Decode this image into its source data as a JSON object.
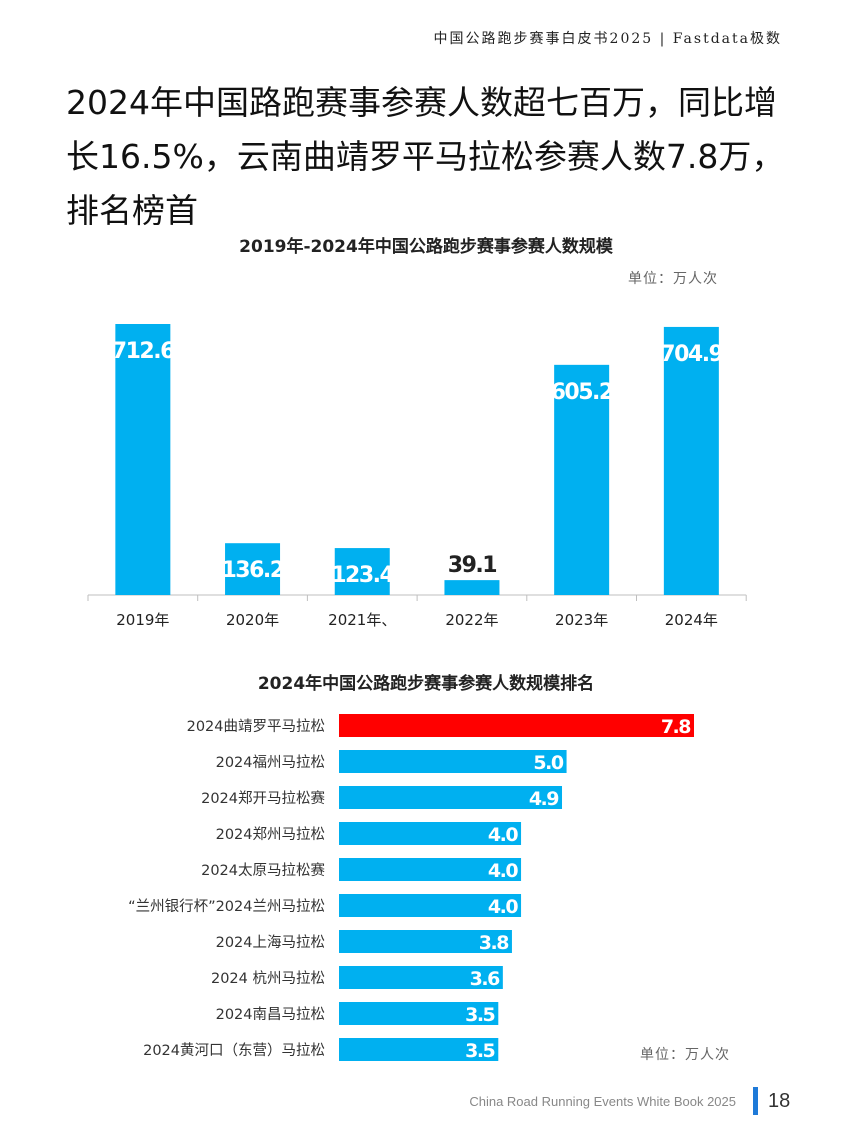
{
  "header": {
    "text": "中国公路跑步赛事白皮书2025 | Fastdata极数"
  },
  "headline": "2024年中国路跑赛事参赛人数超七百万，同比增长16.5%，云南曲靖罗平马拉松参赛人数7.8万，排名榜首",
  "chart_data": [
    {
      "type": "bar",
      "title": "2019年-2024年中国公路跑步赛事参赛人数规模",
      "unit": "单位：万人次",
      "categories": [
        "2019年",
        "2020年",
        "2021年、",
        "2022年",
        "2023年",
        "2024年"
      ],
      "values": [
        712.6,
        136.2,
        123.4,
        39.1,
        605.2,
        704.9
      ],
      "value_labels": [
        "712.6",
        "136.2",
        "123.4",
        "39.1",
        "605.2",
        "704.9"
      ],
      "ylim": [
        0,
        712.6
      ],
      "color": "#00b0f0"
    },
    {
      "type": "bar",
      "orientation": "horizontal",
      "title": "2024年中国公路跑步赛事参赛人数规模排名",
      "unit": "单位：万人次",
      "categories": [
        "2024曲靖罗平马拉松",
        "2024福州马拉松",
        "2024郑开马拉松赛",
        "2024郑州马拉松",
        "2024太原马拉松赛",
        "“兰州银行杯”2024兰州马拉松",
        "2024上海马拉松",
        "2024 杭州马拉松",
        "2024南昌马拉松",
        "2024黄河口（东营）马拉松"
      ],
      "values": [
        7.8,
        5.0,
        4.9,
        4.0,
        4.0,
        4.0,
        3.8,
        3.6,
        3.5,
        3.5
      ],
      "value_labels": [
        "7.8",
        "5.0",
        "4.9",
        "4.0",
        "4.0",
        "4.0",
        "3.8",
        "3.6",
        "3.5",
        "3.5"
      ],
      "xlim": [
        0,
        7.8
      ],
      "highlight_color": "#ff0000",
      "color": "#00b0f0"
    }
  ],
  "footer": {
    "text": "China Road Running Events White Book 2025",
    "page": "18"
  }
}
